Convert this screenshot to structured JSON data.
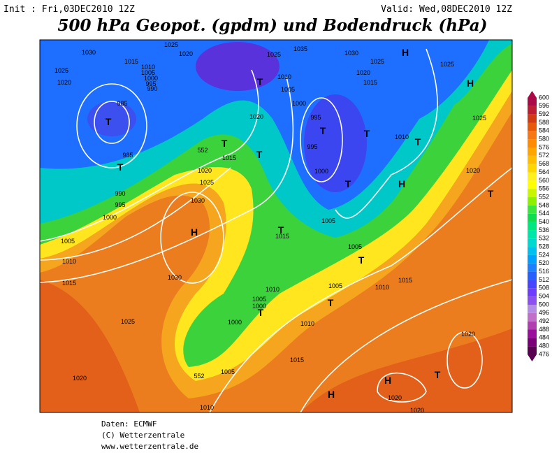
{
  "header": {
    "init": "Init : Fri,03DEC2010 12Z",
    "valid": "Valid: Wed,08DEC2010 12Z",
    "title": "500 hPa Geopot. (gpdm) und Bodendruck (hPa)"
  },
  "colorbar": {
    "ticks": [
      476,
      480,
      484,
      488,
      492,
      496,
      500,
      504,
      508,
      512,
      516,
      520,
      524,
      528,
      532,
      536,
      540,
      544,
      548,
      552,
      556,
      560,
      564,
      568,
      572,
      576,
      580,
      584,
      588,
      592,
      596,
      600
    ],
    "colors": [
      "#5a0050",
      "#7a0078",
      "#9a109a",
      "#b040b0",
      "#c070c8",
      "#b48ce6",
      "#8c50f0",
      "#6e3cff",
      "#4646ff",
      "#2860ff",
      "#1e80ff",
      "#00a0ff",
      "#00c0f0",
      "#00d8d0",
      "#00e6aa",
      "#00e680",
      "#10dc50",
      "#3ce63c",
      "#8cf000",
      "#c8f500",
      "#ffff00",
      "#fff01e",
      "#ffd700",
      "#ffbe00",
      "#ffa500",
      "#ff8c00",
      "#f57814",
      "#e65a0a",
      "#d23c14",
      "#be1e32",
      "#aa0a46"
    ]
  },
  "map": {
    "labels": [
      "1030",
      "1025",
      "1020",
      "1015",
      "1010",
      "1005",
      "1000",
      "995",
      "990",
      "985",
      "985",
      "990",
      "995",
      "1000",
      "1025",
      "1020",
      "1035",
      "1025",
      "1030",
      "1025",
      "1020",
      "1015",
      "1010",
      "1005",
      "1000",
      "995",
      "995",
      "1000",
      "1020",
      "1015",
      "1020",
      "1025",
      "1030",
      "1010",
      "1025",
      "1025",
      "1020",
      "1005",
      "1010",
      "1015",
      "1030",
      "1025",
      "1020",
      "1005",
      "1005",
      "1005",
      "1010",
      "1015",
      "1010",
      "1005",
      "1000",
      "1000",
      "1010",
      "1015",
      "1005",
      "552",
      "552",
      "1020",
      "1020",
      "1020",
      "1010",
      "1015"
    ],
    "centers": [
      "H",
      "H",
      "T",
      "T",
      "T",
      "T",
      "T",
      "T",
      "T",
      "T",
      "T",
      "H",
      "H",
      "T",
      "T",
      "T",
      "T",
      "T",
      "H",
      "T",
      "H"
    ]
  },
  "footer": {
    "source": "Daten: ECMWF",
    "copyright": "(C) Wetterzentrale",
    "url": "www.wetterzentrale.de"
  }
}
